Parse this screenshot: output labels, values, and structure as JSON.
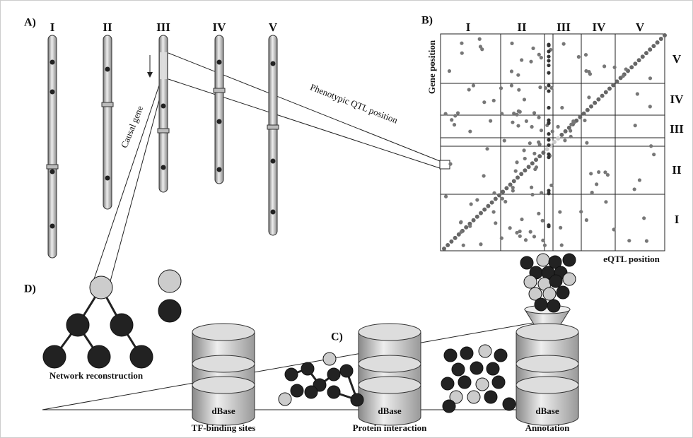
{
  "panels": {
    "a": {
      "label": "A)",
      "chromosomes": [
        "I",
        "II",
        "III",
        "IV",
        "V"
      ],
      "qtl_annotation": "Phenotypic QTL position",
      "gene_annotation": "Causal gene"
    },
    "b": {
      "label": "B)",
      "columns": [
        "I",
        "II",
        "III",
        "IV",
        "V"
      ],
      "rows": [
        "V",
        "IV",
        "III",
        "II",
        "I"
      ],
      "y_axis": "Gene position",
      "x_axis": "eQTL position"
    },
    "c": {
      "label": "C)",
      "databases": [
        {
          "name": "dBase",
          "caption": "TF-binding sites"
        },
        {
          "name": "dBase",
          "caption": "Protein interaction"
        },
        {
          "name": "dBase",
          "caption": "Annotation"
        }
      ]
    },
    "d": {
      "label": "D)",
      "caption": "Network reconstruction"
    }
  }
}
